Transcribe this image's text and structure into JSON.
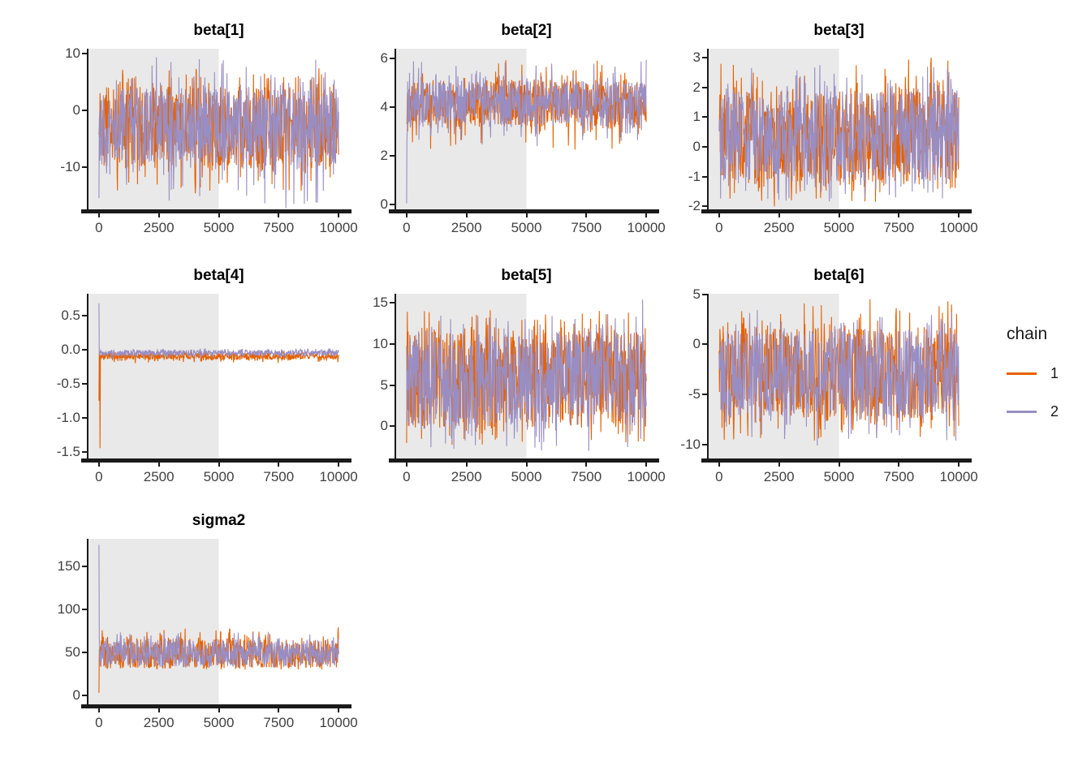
{
  "figure": {
    "background": "#ffffff"
  },
  "colors": {
    "chain1": "#E66101",
    "chain2": "#998EC3",
    "warmup_shade": "#E9E9E9",
    "axis": "#1A1A1A",
    "tick_label": "#404040",
    "title": "#000000"
  },
  "legend": {
    "title": "chain",
    "entries": [
      {
        "label": "1",
        "color": "#E66101"
      },
      {
        "label": "2",
        "color": "#998EC3"
      }
    ]
  },
  "chart_data": {
    "type": "line",
    "subtype": "mcmc-trace",
    "grid": "off",
    "legend_position": "right",
    "x": {
      "range": [
        0,
        10000
      ],
      "ticks": [
        {
          "value": 0,
          "label": "0"
        },
        {
          "value": 2500,
          "label": "2500"
        },
        {
          "value": 5000,
          "label": "5000"
        },
        {
          "value": 7500,
          "label": "7500"
        },
        {
          "value": 10000,
          "label": "10000"
        }
      ],
      "warmup_region": [
        0,
        5000
      ]
    },
    "facets": [
      {
        "id": "beta-1",
        "title": "beta[1]",
        "ylim": [
          -17.4,
          10.9
        ],
        "yticks": [
          {
            "value": 10,
            "label": "10"
          },
          {
            "value": 0,
            "label": "0"
          },
          {
            "value": -10,
            "label": "-10"
          }
        ],
        "chains": [
          {
            "name": "1",
            "center": -2.8,
            "band": 6.9,
            "spike_up": 3.5,
            "spike_dn": 5.0,
            "features": []
          },
          {
            "name": "2",
            "center": -2.8,
            "band": 6.6,
            "spike_up": 5.5,
            "spike_dn": 7.5,
            "features": [
              {
                "p": 0.24,
                "v": 9.4
              },
              {
                "p": 0.78,
                "v": -17.2
              }
            ]
          }
        ]
      },
      {
        "id": "beta-2",
        "title": "beta[2]",
        "ylim": [
          -0.2,
          6.4
        ],
        "yticks": [
          {
            "value": 6,
            "label": "6"
          },
          {
            "value": 4,
            "label": "4"
          },
          {
            "value": 2,
            "label": "2"
          },
          {
            "value": 0,
            "label": "0"
          }
        ],
        "chains": [
          {
            "name": "1",
            "center": 4.15,
            "band": 0.95,
            "spike_up": 0.85,
            "spike_dn": 0.95,
            "features": []
          },
          {
            "name": "2",
            "center": 4.15,
            "band": 0.9,
            "spike_up": 0.9,
            "spike_dn": 0.9,
            "features": [
              {
                "p": 0.0,
                "v": 0.05
              }
            ]
          }
        ]
      },
      {
        "id": "beta-3",
        "title": "beta[3]",
        "ylim": [
          -2.1,
          3.3
        ],
        "yticks": [
          {
            "value": 3,
            "label": "3"
          },
          {
            "value": 2,
            "label": "2"
          },
          {
            "value": 1,
            "label": "1"
          },
          {
            "value": 0,
            "label": "0"
          },
          {
            "value": -1,
            "label": "-1"
          },
          {
            "value": -2,
            "label": "-2"
          }
        ],
        "chains": [
          {
            "name": "1",
            "center": 0.35,
            "band": 1.5,
            "spike_up": 1.1,
            "spike_dn": 0.7,
            "features": [
              {
                "p": 0.885,
                "v": 3.0
              },
              {
                "p": 0.955,
                "v": 2.9
              },
              {
                "p": 0.23,
                "v": -2.0
              }
            ]
          },
          {
            "name": "2",
            "center": 0.35,
            "band": 1.45,
            "spike_up": 0.9,
            "spike_dn": 0.75,
            "features": [
              {
                "p": 0.42,
                "v": 2.75
              }
            ]
          }
        ]
      },
      {
        "id": "beta-4",
        "title": "beta[4]",
        "ylim": [
          -1.6,
          0.82
        ],
        "yticks": [
          {
            "value": 0.5,
            "label": "0.5"
          },
          {
            "value": 0.0,
            "label": "0.0"
          },
          {
            "value": -0.5,
            "label": "-0.5"
          },
          {
            "value": -1.0,
            "label": "-1.0"
          },
          {
            "value": -1.5,
            "label": "-1.5"
          }
        ],
        "chains": [
          {
            "name": "1",
            "center": -0.1,
            "band": 0.05,
            "spike_up": 0.03,
            "spike_dn": 0.05,
            "features": [
              {
                "p": 0.0,
                "v": -0.75
              },
              {
                "p": 0.004,
                "v": -1.45
              },
              {
                "p": 0.008,
                "v": -0.1
              }
            ]
          },
          {
            "name": "2",
            "center": -0.05,
            "band": 0.04,
            "spike_up": 0.03,
            "spike_dn": 0.04,
            "features": [
              {
                "p": 0.0,
                "v": 0.68
              },
              {
                "p": 0.004,
                "v": -0.03
              }
            ]
          }
        ]
      },
      {
        "id": "beta-5",
        "title": "beta[5]",
        "ylim": [
          -3.9,
          16.1
        ],
        "yticks": [
          {
            "value": 15,
            "label": "15"
          },
          {
            "value": 10,
            "label": "10"
          },
          {
            "value": 5,
            "label": "5"
          },
          {
            "value": 0,
            "label": "0"
          }
        ],
        "chains": [
          {
            "name": "1",
            "center": 5.7,
            "band": 5.6,
            "spike_up": 2.8,
            "spike_dn": 2.6,
            "features": [
              {
                "p": 0.0,
                "v": -2.0
              },
              {
                "p": 0.003,
                "v": 13.9
              }
            ]
          },
          {
            "name": "2",
            "center": 5.7,
            "band": 5.4,
            "spike_up": 2.6,
            "spike_dn": 3.4,
            "features": [
              {
                "p": 0.985,
                "v": 15.4
              }
            ]
          }
        ]
      },
      {
        "id": "beta-6",
        "title": "beta[6]",
        "ylim": [
          -11.4,
          5.05
        ],
        "yticks": [
          {
            "value": 5,
            "label": "5"
          },
          {
            "value": 0,
            "label": "0"
          },
          {
            "value": -5,
            "label": "-5"
          },
          {
            "value": -10,
            "label": "-10"
          }
        ],
        "chains": [
          {
            "name": "1",
            "center": -2.9,
            "band": 4.4,
            "spike_up": 2.6,
            "spike_dn": 2.3,
            "features": [
              {
                "p": 0.63,
                "v": 4.5
              },
              {
                "p": 0.955,
                "v": 4.3
              }
            ]
          },
          {
            "name": "2",
            "center": -2.9,
            "band": 4.2,
            "spike_up": 2.2,
            "spike_dn": 2.6,
            "features": [
              {
                "p": 0.41,
                "v": -10.1
              },
              {
                "p": 0.97,
                "v": 3.2
              }
            ]
          }
        ]
      },
      {
        "id": "sigma2",
        "title": "sigma2",
        "ylim": [
          -10.5,
          182
        ],
        "yticks": [
          {
            "value": 150,
            "label": "150"
          },
          {
            "value": 100,
            "label": "100"
          },
          {
            "value": 50,
            "label": "50"
          },
          {
            "value": 0,
            "label": "0"
          }
        ],
        "chains": [
          {
            "name": "1",
            "center": 49,
            "band": 16,
            "spike_up": 14,
            "spike_dn": 3,
            "features": [
              {
                "p": 0.0,
                "v": 3
              },
              {
                "p": 0.006,
                "v": 48
              }
            ]
          },
          {
            "name": "2",
            "center": 49,
            "band": 15,
            "spike_up": 11,
            "spike_dn": 2,
            "features": [
              {
                "p": 0.0,
                "v": 175
              },
              {
                "p": 0.006,
                "v": 52
              }
            ]
          }
        ]
      }
    ]
  }
}
